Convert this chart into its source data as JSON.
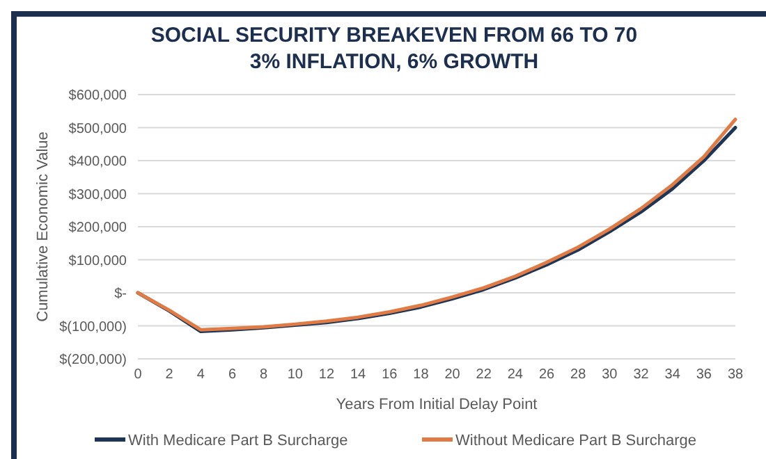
{
  "chart_data": {
    "type": "line",
    "title": "SOCIAL SECURITY BREAKEVEN FROM 66 TO 70",
    "subtitle": "3% INFLATION, 6% GROWTH",
    "xlabel": "Years From Initial Delay Point",
    "ylabel": "Cumulative Economic Value",
    "x": [
      0,
      2,
      4,
      6,
      8,
      10,
      12,
      14,
      16,
      18,
      20,
      22,
      24,
      26,
      28,
      30,
      32,
      34,
      36,
      38
    ],
    "series": [
      {
        "name": "With Medicare Part B Surcharge",
        "color": "#1d3557",
        "values": [
          0,
          -55000,
          -117000,
          -112000,
          -106000,
          -98000,
          -90000,
          -78000,
          -62000,
          -43000,
          -18000,
          10000,
          45000,
          85000,
          130000,
          185000,
          245000,
          315000,
          400000,
          500000
        ]
      },
      {
        "name": "Without Medicare Part B Surcharge",
        "color": "#e07b45",
        "values": [
          0,
          -53000,
          -112000,
          -108000,
          -103000,
          -95000,
          -86000,
          -74000,
          -58000,
          -38000,
          -13000,
          15000,
          50000,
          92000,
          138000,
          193000,
          255000,
          327000,
          412000,
          525000
        ]
      }
    ],
    "xlim": [
      0,
      38
    ],
    "xticks": [
      0,
      2,
      4,
      6,
      8,
      10,
      12,
      14,
      16,
      18,
      20,
      22,
      24,
      26,
      28,
      30,
      32,
      34,
      36,
      38
    ],
    "ylim": [
      -200000,
      600000
    ],
    "yticks": [
      {
        "value": -200000,
        "label": "$(200,000)"
      },
      {
        "value": -100000,
        "label": "$(100,000)"
      },
      {
        "value": 0,
        "label": "$-"
      },
      {
        "value": 100000,
        "label": "$100,000"
      },
      {
        "value": 200000,
        "label": "$200,000"
      },
      {
        "value": 300000,
        "label": "$300,000"
      },
      {
        "value": 400000,
        "label": "$400,000"
      },
      {
        "value": 500000,
        "label": "$500,000"
      },
      {
        "value": 600000,
        "label": "$600,000"
      }
    ],
    "grid": "y",
    "legend": "bottom",
    "marker": "none",
    "line_style": "solid"
  }
}
